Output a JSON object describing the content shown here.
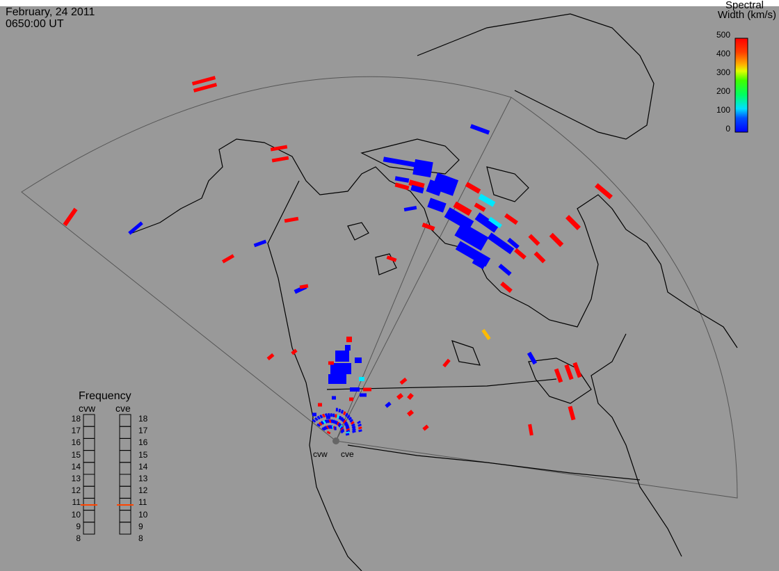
{
  "header": {
    "date": "February, 24 2011",
    "time": "0650:00 UT"
  },
  "colorbar": {
    "title_line1": "Spectral",
    "title_line2": "Width (km/s)",
    "ticks": [
      "500",
      "400",
      "300",
      "200",
      "100",
      "0"
    ]
  },
  "frequency": {
    "title": "Frequency",
    "radars": [
      "cvw",
      "cve"
    ],
    "ticks": [
      "18",
      "17",
      "16",
      "15",
      "14",
      "13",
      "12",
      "11",
      "10",
      "9",
      "8"
    ],
    "current_value": 11
  },
  "stations": [
    "cvw",
    "cve"
  ],
  "colors": {
    "background": "#999999",
    "red": "#ff0000",
    "blue": "#0000ff",
    "cyan": "#00e8ff",
    "orange": "#ffbb00",
    "marker": "#ff4400"
  }
}
